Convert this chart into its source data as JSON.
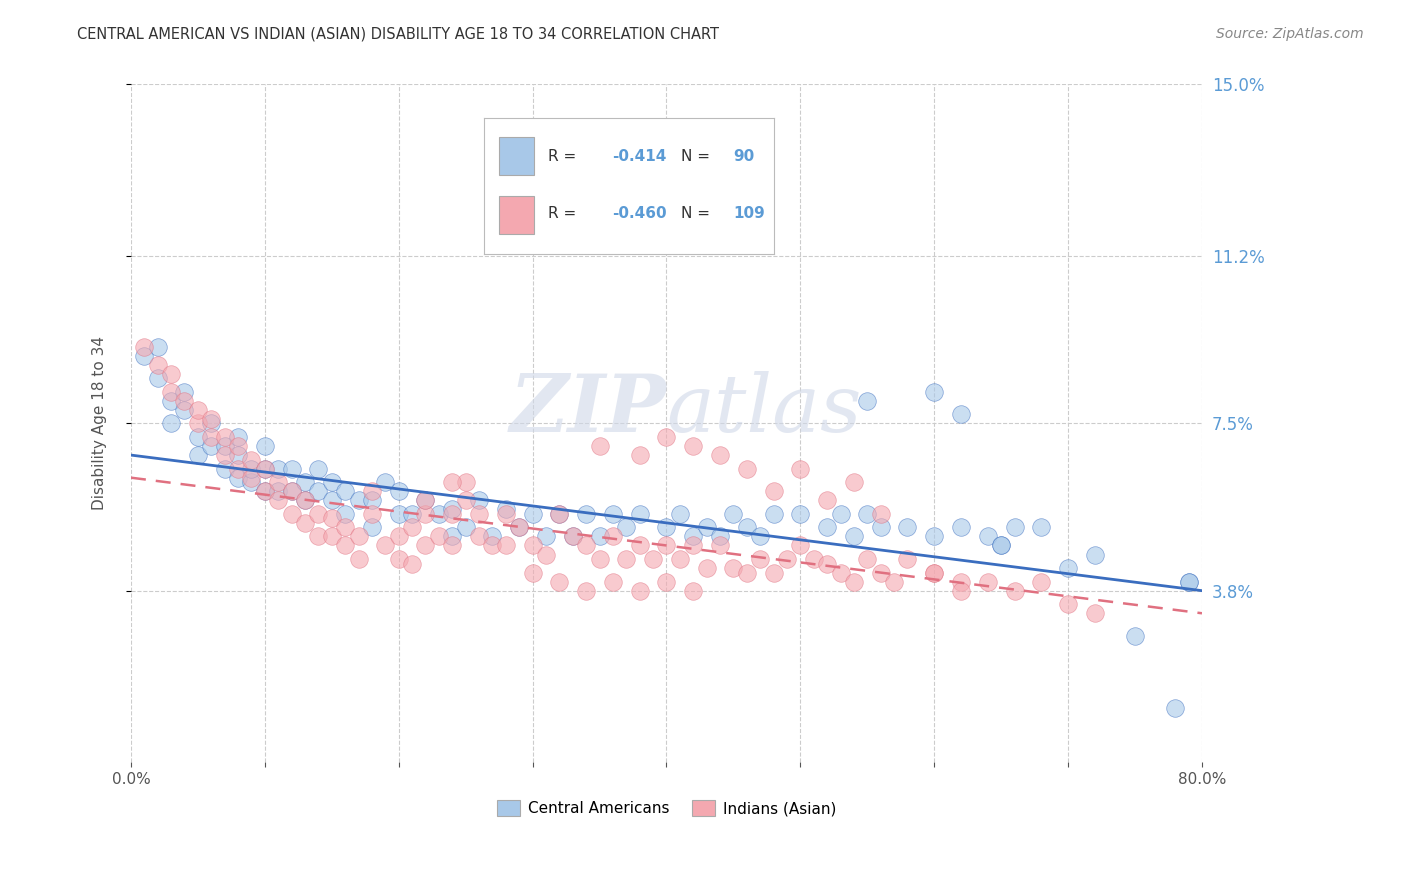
{
  "title": "CENTRAL AMERICAN VS INDIAN (ASIAN) DISABILITY AGE 18 TO 34 CORRELATION CHART",
  "source": "Source: ZipAtlas.com",
  "ylabel": "Disability Age 18 to 34",
  "xlabel": "",
  "xlim": [
    0.0,
    0.8
  ],
  "ylim": [
    0.0,
    0.15
  ],
  "xticks": [
    0.0,
    0.1,
    0.2,
    0.3,
    0.4,
    0.5,
    0.6,
    0.7,
    0.8
  ],
  "xticklabels": [
    "0.0%",
    "",
    "",
    "",
    "",
    "",
    "",
    "",
    "80.0%"
  ],
  "ytick_positions": [
    0.038,
    0.075,
    0.112,
    0.15
  ],
  "ytick_labels": [
    "3.8%",
    "7.5%",
    "11.2%",
    "15.0%"
  ],
  "label1": "Central Americans",
  "label2": "Indians (Asian)",
  "color1": "#a8c8e8",
  "color2": "#f4a8b0",
  "color1_line": "#3a6dbf",
  "color2_line": "#e07080",
  "color_axis_labels": "#5b9bd5",
  "watermark": "ZIPatlas",
  "blue_line_start_x": 0.0,
  "blue_line_start_y": 0.068,
  "blue_line_end_x": 0.8,
  "blue_line_end_y": 0.038,
  "pink_line_start_x": 0.0,
  "pink_line_start_y": 0.063,
  "pink_line_end_x": 0.8,
  "pink_line_end_y": 0.033,
  "blue_scatter_x": [
    0.01,
    0.02,
    0.02,
    0.03,
    0.03,
    0.04,
    0.04,
    0.05,
    0.05,
    0.06,
    0.06,
    0.07,
    0.07,
    0.08,
    0.08,
    0.08,
    0.09,
    0.09,
    0.1,
    0.1,
    0.1,
    0.11,
    0.11,
    0.12,
    0.12,
    0.13,
    0.13,
    0.14,
    0.14,
    0.15,
    0.15,
    0.16,
    0.16,
    0.17,
    0.18,
    0.18,
    0.19,
    0.2,
    0.2,
    0.21,
    0.22,
    0.23,
    0.24,
    0.24,
    0.25,
    0.26,
    0.27,
    0.28,
    0.29,
    0.3,
    0.31,
    0.32,
    0.33,
    0.34,
    0.35,
    0.36,
    0.37,
    0.38,
    0.4,
    0.41,
    0.42,
    0.43,
    0.44,
    0.45,
    0.46,
    0.47,
    0.48,
    0.5,
    0.52,
    0.53,
    0.54,
    0.55,
    0.56,
    0.58,
    0.6,
    0.62,
    0.64,
    0.65,
    0.66,
    0.68,
    0.55,
    0.6,
    0.62,
    0.65,
    0.7,
    0.72,
    0.75,
    0.78,
    0.79,
    0.79
  ],
  "blue_scatter_y": [
    0.09,
    0.085,
    0.092,
    0.075,
    0.08,
    0.078,
    0.082,
    0.072,
    0.068,
    0.07,
    0.075,
    0.065,
    0.07,
    0.063,
    0.068,
    0.072,
    0.062,
    0.065,
    0.06,
    0.065,
    0.07,
    0.06,
    0.065,
    0.06,
    0.065,
    0.058,
    0.062,
    0.06,
    0.065,
    0.058,
    0.062,
    0.055,
    0.06,
    0.058,
    0.052,
    0.058,
    0.062,
    0.055,
    0.06,
    0.055,
    0.058,
    0.055,
    0.05,
    0.056,
    0.052,
    0.058,
    0.05,
    0.056,
    0.052,
    0.055,
    0.05,
    0.055,
    0.05,
    0.055,
    0.05,
    0.055,
    0.052,
    0.055,
    0.052,
    0.055,
    0.05,
    0.052,
    0.05,
    0.055,
    0.052,
    0.05,
    0.055,
    0.055,
    0.052,
    0.055,
    0.05,
    0.055,
    0.052,
    0.052,
    0.05,
    0.052,
    0.05,
    0.048,
    0.052,
    0.052,
    0.08,
    0.082,
    0.077,
    0.048,
    0.043,
    0.046,
    0.028,
    0.012,
    0.04,
    0.04
  ],
  "pink_scatter_x": [
    0.01,
    0.02,
    0.03,
    0.03,
    0.04,
    0.05,
    0.05,
    0.06,
    0.06,
    0.07,
    0.07,
    0.08,
    0.08,
    0.09,
    0.09,
    0.1,
    0.1,
    0.11,
    0.11,
    0.12,
    0.12,
    0.13,
    0.13,
    0.14,
    0.14,
    0.15,
    0.15,
    0.16,
    0.16,
    0.17,
    0.17,
    0.18,
    0.18,
    0.19,
    0.2,
    0.2,
    0.21,
    0.21,
    0.22,
    0.22,
    0.23,
    0.24,
    0.24,
    0.25,
    0.25,
    0.26,
    0.27,
    0.28,
    0.29,
    0.3,
    0.31,
    0.32,
    0.33,
    0.34,
    0.35,
    0.36,
    0.37,
    0.38,
    0.39,
    0.4,
    0.41,
    0.42,
    0.43,
    0.44,
    0.45,
    0.46,
    0.47,
    0.48,
    0.49,
    0.5,
    0.51,
    0.52,
    0.53,
    0.54,
    0.55,
    0.56,
    0.57,
    0.58,
    0.6,
    0.62,
    0.35,
    0.38,
    0.4,
    0.42,
    0.44,
    0.46,
    0.48,
    0.5,
    0.52,
    0.54,
    0.56,
    0.6,
    0.62,
    0.64,
    0.66,
    0.68,
    0.7,
    0.72,
    0.22,
    0.24,
    0.26,
    0.28,
    0.3,
    0.32,
    0.34,
    0.36,
    0.38,
    0.4,
    0.42
  ],
  "pink_scatter_y": [
    0.092,
    0.088,
    0.082,
    0.086,
    0.08,
    0.075,
    0.078,
    0.072,
    0.076,
    0.068,
    0.072,
    0.065,
    0.07,
    0.063,
    0.067,
    0.06,
    0.065,
    0.058,
    0.062,
    0.055,
    0.06,
    0.053,
    0.058,
    0.05,
    0.055,
    0.05,
    0.054,
    0.048,
    0.052,
    0.045,
    0.05,
    0.055,
    0.06,
    0.048,
    0.045,
    0.05,
    0.044,
    0.052,
    0.048,
    0.055,
    0.05,
    0.048,
    0.055,
    0.062,
    0.058,
    0.05,
    0.048,
    0.055,
    0.052,
    0.048,
    0.046,
    0.055,
    0.05,
    0.048,
    0.045,
    0.05,
    0.045,
    0.048,
    0.045,
    0.048,
    0.045,
    0.048,
    0.043,
    0.048,
    0.043,
    0.042,
    0.045,
    0.042,
    0.045,
    0.048,
    0.045,
    0.044,
    0.042,
    0.04,
    0.045,
    0.042,
    0.04,
    0.045,
    0.042,
    0.04,
    0.07,
    0.068,
    0.072,
    0.07,
    0.068,
    0.065,
    0.06,
    0.065,
    0.058,
    0.062,
    0.055,
    0.042,
    0.038,
    0.04,
    0.038,
    0.04,
    0.035,
    0.033,
    0.058,
    0.062,
    0.055,
    0.048,
    0.042,
    0.04,
    0.038,
    0.04,
    0.038,
    0.04,
    0.038
  ]
}
